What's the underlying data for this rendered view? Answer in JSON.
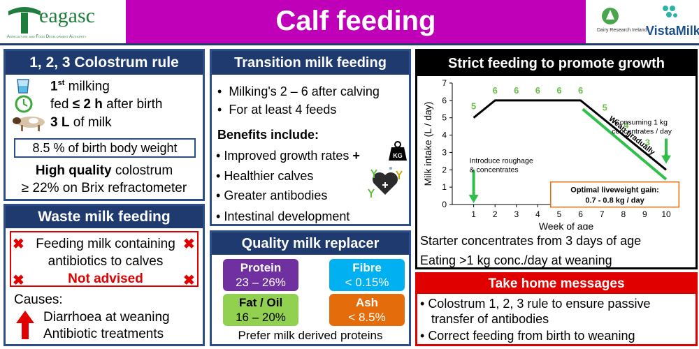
{
  "header": {
    "logo_left": {
      "name": "eagasc",
      "sub": "Agriculture and Food Development Authority"
    },
    "title": "Calf feeding",
    "logo_right_1": "Dairy Research Ireland",
    "logo_right_2": "VistaMilk"
  },
  "colostrum": {
    "title": "1, 2, 3 Colostrum rule",
    "line1_num": "1",
    "line1_sup": "st",
    "line1_rest": " milking",
    "line2_pre": "fed ",
    "line2_bold": "≤ 2 h",
    "line2_post": " after birth",
    "line3_bold": "3 L",
    "line3_post": " of milk",
    "box": "8.5 % of birth body weight",
    "hq_bold": "High quality",
    "hq_rest": " colostrum",
    "brix": "≥ 22% on Brix refractometer"
  },
  "waste": {
    "title": "Waste milk feeding",
    "line1": "Feeding milk containing",
    "line2": "antibiotics to calves",
    "not_advised": "Not advised",
    "causes": "Causes:",
    "cause1": "Diarrhoea at weaning",
    "cause2": "Antibiotic treatments"
  },
  "transition": {
    "title": "Transition milk feeding",
    "b1": "Milking's 2 – 6 after calving",
    "b2": "For at least 4 feeds",
    "benefits": "Benefits include:",
    "c1": "Improved growth rates",
    "c2": "Healthier calves",
    "c3": "Greater antibodies",
    "c4": "Intestinal development",
    "kg": "KG"
  },
  "replacer": {
    "title": "Quality milk replacer",
    "protein": {
      "label": "Protein",
      "value": "23 – 26%",
      "color": "#7030a0"
    },
    "fibre": {
      "label": "Fibre",
      "value": "< 0.15%",
      "color": "#00b0f0"
    },
    "fat": {
      "label": "Fat / Oil",
      "value": "16 – 20%",
      "color": "#92d050"
    },
    "ash": {
      "label": "Ash",
      "value": "< 8.5%",
      "color": "#e46c0a"
    },
    "footer": "Prefer milk derived proteins"
  },
  "growth": {
    "title": "Strict feeding to promote growth",
    "line1": "Starter concentrates from 3 days of age",
    "line2": "Eating  >1 kg conc./day at weaning",
    "annot_roughage": "Introduce roughage\n& concentrates",
    "annot_consuming": "Consuming 1 kg\nconcentrates / day",
    "annot_wean": "Wean gradually",
    "optimal_title": "Optimal liveweight gain:",
    "optimal_value": "0.7 - 0.8 kg / day"
  },
  "chart_data": {
    "type": "line",
    "title": "",
    "xlabel": "Week of age",
    "ylabel": "Milk intake (L / day)",
    "xlim": [
      0,
      10
    ],
    "ylim": [
      0,
      7
    ],
    "xticks": [
      1,
      2,
      3,
      4,
      5,
      6,
      7,
      8,
      9,
      10
    ],
    "yticks": [
      0,
      1,
      2,
      3,
      4,
      5,
      6,
      7
    ],
    "series": [
      {
        "x": [
          1,
          2,
          6,
          10
        ],
        "y": [
          5,
          6,
          6,
          2
        ],
        "color": "#000000"
      }
    ],
    "data_labels": [
      {
        "x": 1,
        "y": 5,
        "text": "5"
      },
      {
        "x": 2,
        "y": 6,
        "text": "6"
      },
      {
        "x": 3,
        "y": 6,
        "text": "6"
      },
      {
        "x": 4,
        "y": 6,
        "text": "6"
      },
      {
        "x": 5,
        "y": 6,
        "text": "6"
      },
      {
        "x": 6,
        "y": 6,
        "text": "6"
      },
      {
        "x": 7,
        "y": 5,
        "text": "5"
      },
      {
        "x": 8,
        "y": 4,
        "text": "4"
      },
      {
        "x": 9,
        "y": 3,
        "text": "3"
      },
      {
        "x": 10,
        "y": 2,
        "text": "2"
      }
    ],
    "label_color": "#6abf4b"
  },
  "take_home": {
    "title": "Take home messages",
    "m1a": "Colostrum 1, 2, 3 rule to ensure passive",
    "m1b": "transfer of antibodies",
    "m2": "Correct feeding from birth to weaning"
  }
}
